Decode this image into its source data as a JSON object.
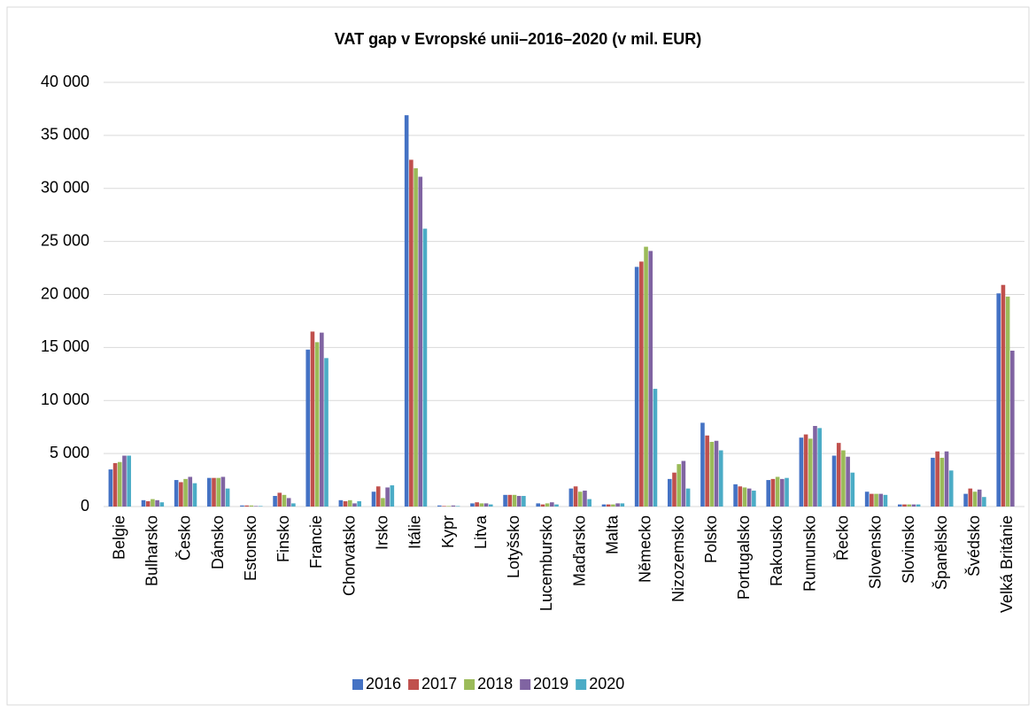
{
  "chart_data": {
    "type": "bar",
    "title": "VAT gap v Evropské unii–2016–2020 (v mil. EUR)",
    "categories": [
      "Belgie",
      "Bulharsko",
      "Česko",
      "Dánsko",
      "Estonsko",
      "Finsko",
      "Francie",
      "Chorvatsko",
      "Irsko",
      "Itálie",
      "Kypr",
      "Litva",
      "Lotyšsko",
      "Lucembursko",
      "Maďarsko",
      "Malta",
      "Německo",
      "Nizozemsko",
      "Polsko",
      "Portugalsko",
      "Rakousko",
      "Rumunsko",
      "Řecko",
      "Slovensko",
      "Slovinsko",
      "Španělsko",
      "Švédsko",
      "Velká Británie"
    ],
    "series": [
      {
        "name": "2016",
        "color": "#4472c4",
        "values": [
          3500,
          600,
          2500,
          2700,
          100,
          1000,
          14800,
          600,
          1400,
          36900,
          100,
          300,
          1100,
          300,
          1700,
          200,
          22600,
          2600,
          7900,
          2100,
          2500,
          6500,
          4800,
          1400,
          200,
          4600,
          1200,
          20100
        ]
      },
      {
        "name": "2017",
        "color": "#c0504d",
        "values": [
          4100,
          500,
          2300,
          2700,
          100,
          1300,
          16500,
          500,
          1900,
          32700,
          50,
          400,
          1100,
          200,
          1900,
          200,
          23100,
          3200,
          6700,
          1900,
          2600,
          6800,
          6000,
          1200,
          200,
          5200,
          1700,
          20900
        ]
      },
      {
        "name": "2018",
        "color": "#9bbb59",
        "values": [
          4200,
          700,
          2600,
          2700,
          100,
          1100,
          15500,
          600,
          800,
          31900,
          50,
          300,
          1100,
          300,
          1400,
          200,
          24500,
          4000,
          6100,
          1800,
          2800,
          6400,
          5300,
          1200,
          200,
          4600,
          1400,
          19800
        ]
      },
      {
        "name": "2019",
        "color": "#8064a2",
        "values": [
          4800,
          600,
          2800,
          2800,
          50,
          800,
          16400,
          300,
          1800,
          31100,
          100,
          300,
          1000,
          400,
          1500,
          300,
          24100,
          4300,
          6200,
          1700,
          2600,
          7600,
          4700,
          1200,
          200,
          5200,
          1600,
          14700
        ]
      },
      {
        "name": "2020",
        "color": "#4bacc6",
        "values": [
          4800,
          400,
          2200,
          1700,
          50,
          300,
          14000,
          500,
          2000,
          26200,
          50,
          200,
          1000,
          200,
          700,
          300,
          11100,
          1700,
          5300,
          1500,
          2700,
          7400,
          3200,
          1100,
          200,
          3400,
          900,
          null
        ]
      }
    ],
    "ylim": [
      0,
      40000
    ],
    "yticks": [
      0,
      {
        "value": 5000,
        "label": "5 000"
      },
      {
        "value": 10000,
        "label": "10 000"
      },
      {
        "value": 15000,
        "label": "15 000"
      },
      {
        "value": 20000,
        "label": "20 000"
      },
      {
        "value": 25000,
        "label": "25 000"
      },
      {
        "value": 30000,
        "label": "30 000"
      },
      {
        "value": 35000,
        "label": "35 000"
      },
      {
        "value": 40000,
        "label": "40 000"
      }
    ],
    "grid": true,
    "legend": "bottom"
  }
}
